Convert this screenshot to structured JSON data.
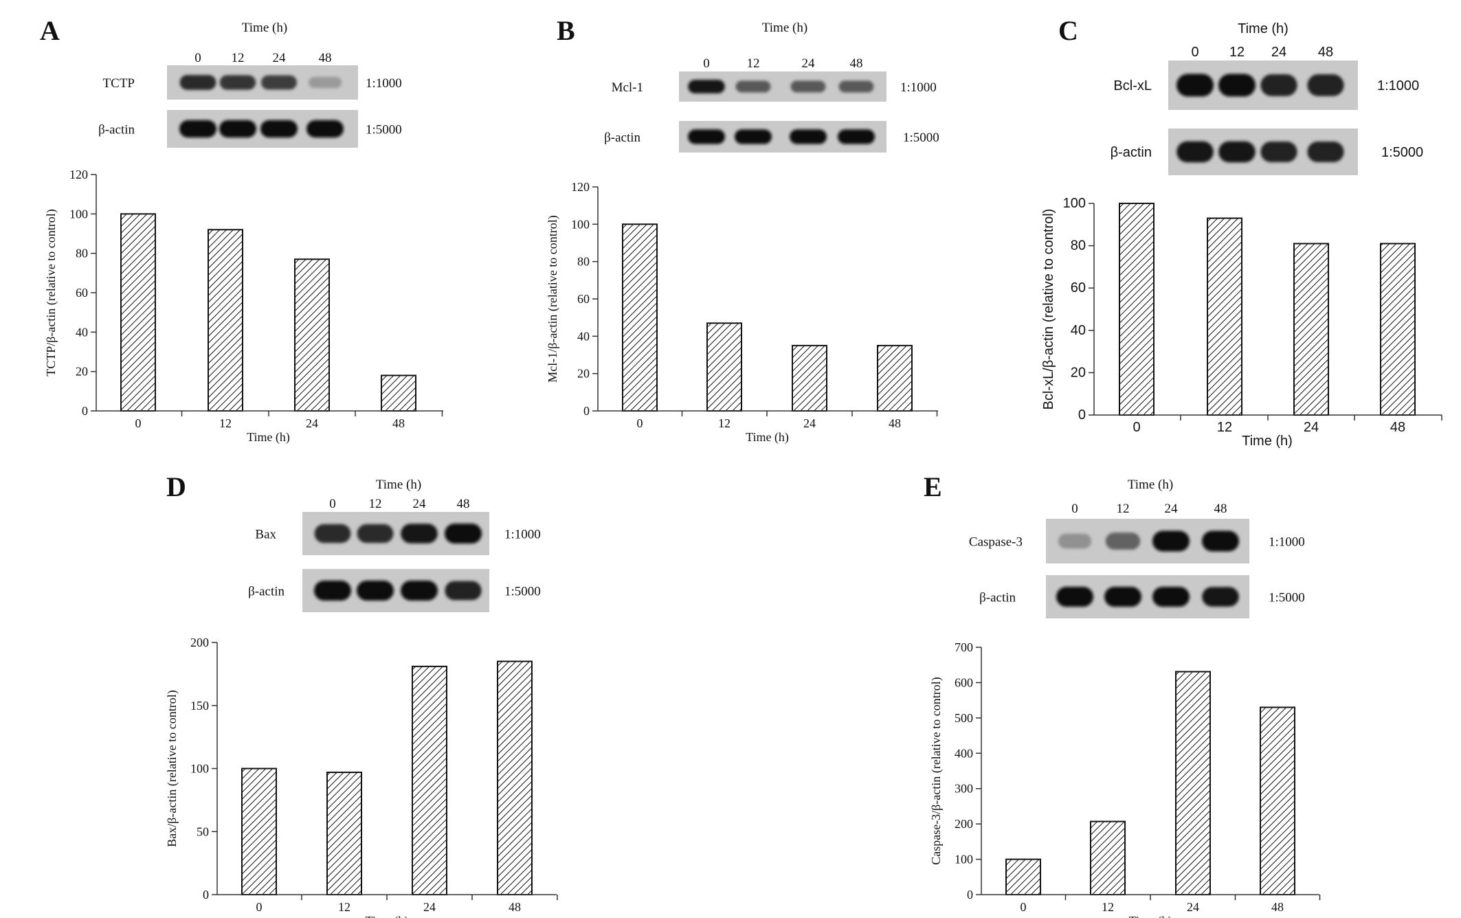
{
  "panels": [
    {
      "letter": "A",
      "blot": {
        "time_label": "Time (h)",
        "lanes": [
          "0",
          "12",
          "24",
          "48"
        ],
        "rows": [
          {
            "label": "TCTP",
            "dilution": "1:1000",
            "intensity": [
              0.85,
              0.8,
              0.75,
              0.25
            ]
          },
          {
            "label": "β-actin",
            "dilution": "1:5000",
            "intensity": [
              1,
              1,
              1,
              1
            ]
          }
        ]
      }
    },
    {
      "letter": "B",
      "blot": {
        "time_label": "Time (h)",
        "lanes": [
          "0",
          "12",
          "24",
          "48"
        ],
        "rows": [
          {
            "label": "Mcl-1",
            "dilution": "1:1000",
            "intensity": [
              0.95,
              0.6,
              0.6,
              0.6
            ]
          },
          {
            "label": "β-actin",
            "dilution": "1:5000",
            "intensity": [
              1,
              1,
              1,
              1
            ]
          }
        ]
      }
    },
    {
      "letter": "C",
      "blot": {
        "time_label": "Time (h)",
        "lanes": [
          "0",
          "12",
          "24",
          "48"
        ],
        "rows": [
          {
            "label": "Bcl-xL",
            "dilution": "1:1000",
            "intensity": [
              1,
              1,
              0.9,
              0.9
            ]
          },
          {
            "label": "β-actin",
            "dilution": "1:5000",
            "intensity": [
              0.95,
              0.95,
              0.9,
              0.9
            ]
          }
        ]
      }
    },
    {
      "letter": "D",
      "blot": {
        "time_label": "Time (h)",
        "lanes": [
          "0",
          "12",
          "24",
          "48"
        ],
        "rows": [
          {
            "label": "Bax",
            "dilution": "1:1000",
            "intensity": [
              0.85,
              0.85,
              0.95,
              1
            ]
          },
          {
            "label": "β-actin",
            "dilution": "1:5000",
            "intensity": [
              1,
              1,
              1,
              0.9
            ]
          }
        ]
      }
    },
    {
      "letter": "E",
      "blot": {
        "time_label": "Time (h)",
        "lanes": [
          "0",
          "12",
          "24",
          "48"
        ],
        "rows": [
          {
            "label": "Caspase-3",
            "dilution": "1:1000",
            "intensity": [
              0.3,
              0.55,
              1,
              1
            ]
          },
          {
            "label": "β-actin",
            "dilution": "1:5000",
            "intensity": [
              1,
              1,
              1,
              0.95
            ]
          }
        ]
      }
    }
  ],
  "chart_data": [
    {
      "panel": "A",
      "type": "bar",
      "categories": [
        "0",
        "12",
        "24",
        "48"
      ],
      "values": [
        100,
        92,
        77,
        18
      ],
      "xlabel": "Time (h)",
      "ylabel": "TCTP/β-actin (relative to control)",
      "ylim": [
        0,
        120
      ],
      "yticks": [
        0,
        20,
        40,
        60,
        80,
        100,
        120
      ],
      "grid": false,
      "legend": "none"
    },
    {
      "panel": "B",
      "type": "bar",
      "categories": [
        "0",
        "12",
        "24",
        "48"
      ],
      "values": [
        100,
        47,
        35,
        35
      ],
      "xlabel": "Time (h)",
      "ylabel": "Mcl-1/β-actin (relative to control)",
      "ylim": [
        0,
        120
      ],
      "yticks": [
        0,
        20,
        40,
        60,
        80,
        100,
        120
      ],
      "grid": false,
      "legend": "none"
    },
    {
      "panel": "C",
      "type": "bar",
      "categories": [
        "0",
        "12",
        "24",
        "48"
      ],
      "values": [
        100,
        93,
        81,
        81
      ],
      "xlabel": "Time (h)",
      "ylabel": "Bcl-xL/β-actin (relative to control)",
      "ylim": [
        0,
        100
      ],
      "yticks": [
        0,
        20,
        40,
        60,
        80,
        100
      ],
      "grid": false,
      "legend": "none"
    },
    {
      "panel": "D",
      "type": "bar",
      "categories": [
        "0",
        "12",
        "24",
        "48"
      ],
      "values": [
        100,
        97,
        181,
        185
      ],
      "xlabel": "Time (h)",
      "ylabel": "Bax/β-actin (relative to control)",
      "ylim": [
        0,
        200
      ],
      "yticks": [
        0,
        50,
        100,
        150,
        200
      ],
      "grid": false,
      "legend": "none"
    },
    {
      "panel": "E",
      "type": "bar",
      "categories": [
        "0",
        "12",
        "24",
        "48"
      ],
      "values": [
        100,
        207,
        631,
        530
      ],
      "xlabel": "Time (h)",
      "ylabel": "Caspase-3/β-actin (relative to control)",
      "ylim": [
        0,
        700
      ],
      "yticks": [
        0,
        100,
        200,
        300,
        400,
        500,
        600,
        700
      ],
      "grid": false,
      "legend": "none"
    }
  ]
}
